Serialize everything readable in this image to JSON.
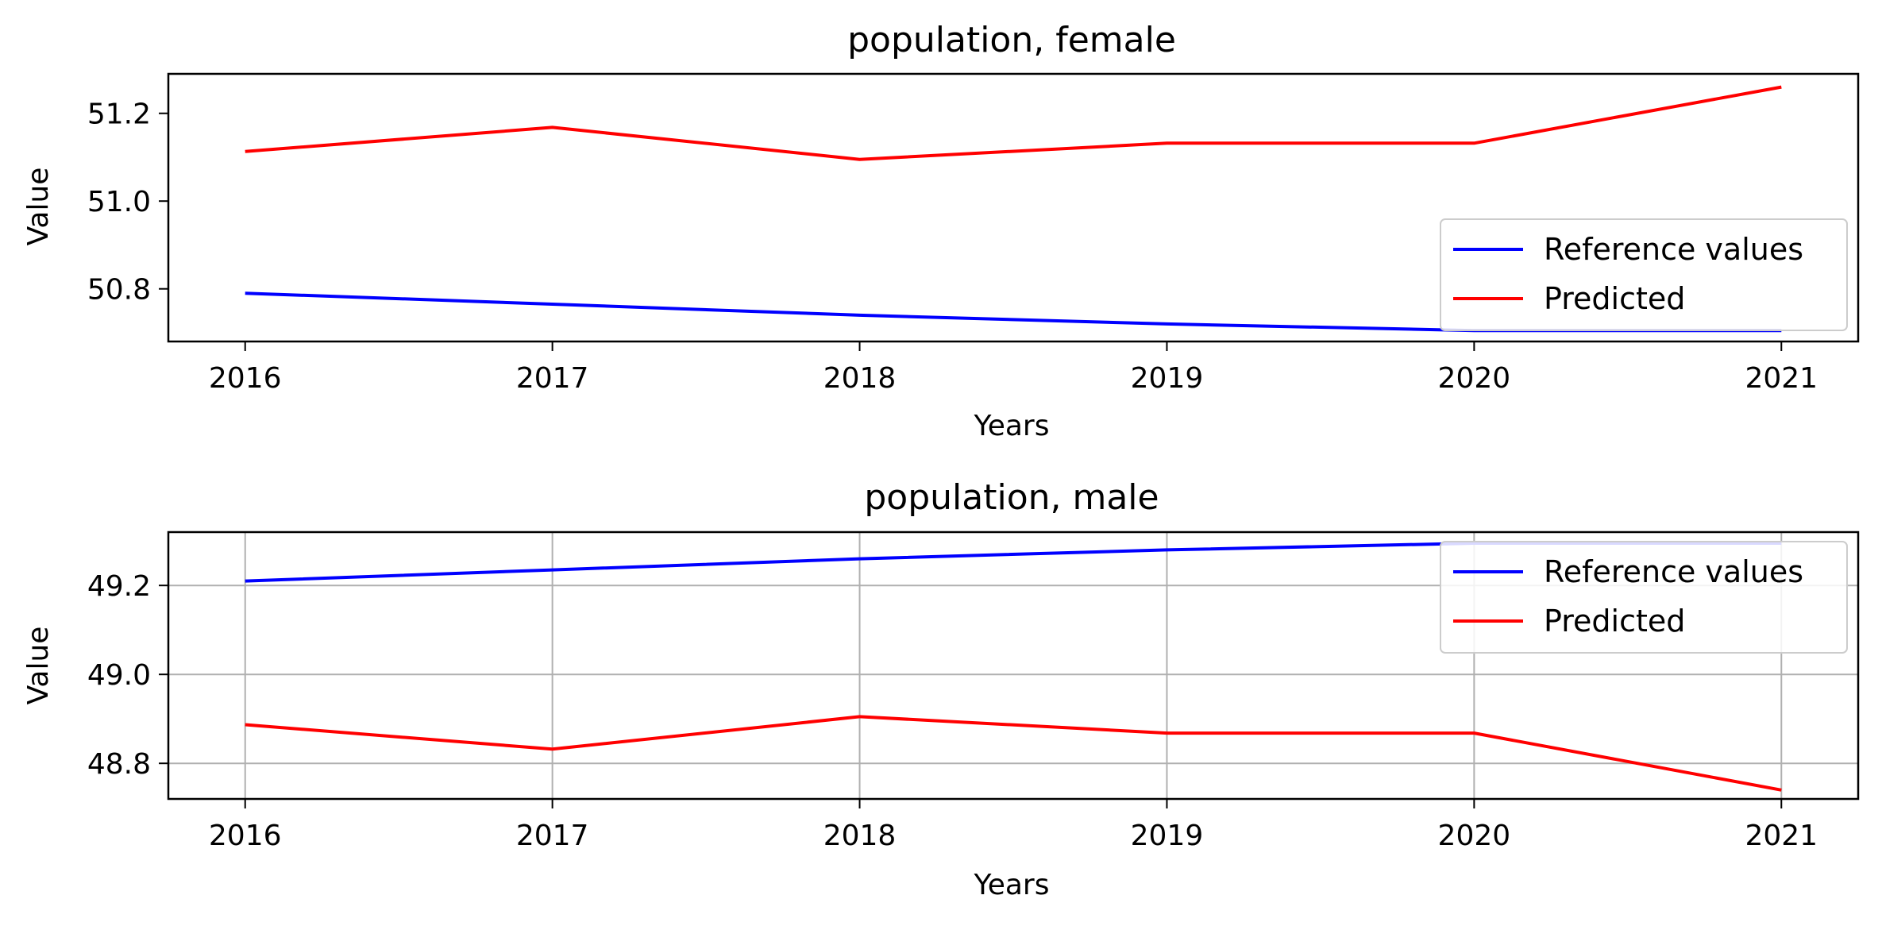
{
  "chart_data": [
    {
      "type": "line",
      "title": "population, female",
      "xlabel": "Years",
      "ylabel": "Value",
      "x": [
        2016,
        2017,
        2018,
        2019,
        2020,
        2021
      ],
      "x_ticks": [
        "2016",
        "2017",
        "2018",
        "2019",
        "2020",
        "2021"
      ],
      "y_ticks": [
        "50.8",
        "51.0",
        "51.2"
      ],
      "y_tick_values": [
        50.8,
        51.0,
        51.2
      ],
      "xlim": [
        2015.75,
        2021.25
      ],
      "ylim": [
        50.68,
        51.29
      ],
      "grid": false,
      "legend_position": "lower-right",
      "series": [
        {
          "name": "Reference values",
          "color": "#0000ff",
          "values": [
            50.79,
            50.765,
            50.74,
            50.72,
            50.705,
            50.705
          ]
        },
        {
          "name": "Predicted",
          "color": "#ff0000",
          "values": [
            51.113,
            51.168,
            51.095,
            51.132,
            51.132,
            51.26
          ]
        }
      ]
    },
    {
      "type": "line",
      "title": "population, male",
      "xlabel": "Years",
      "ylabel": "Value",
      "x": [
        2016,
        2017,
        2018,
        2019,
        2020,
        2021
      ],
      "x_ticks": [
        "2016",
        "2017",
        "2018",
        "2019",
        "2020",
        "2021"
      ],
      "y_ticks": [
        "48.8",
        "49.0",
        "49.2"
      ],
      "y_tick_values": [
        48.8,
        49.0,
        49.2
      ],
      "xlim": [
        2015.75,
        2021.25
      ],
      "ylim": [
        48.72,
        49.32
      ],
      "grid": true,
      "legend_position": "upper-right",
      "series": [
        {
          "name": "Reference values",
          "color": "#0000ff",
          "values": [
            49.21,
            49.235,
            49.26,
            49.28,
            49.295,
            49.295
          ]
        },
        {
          "name": "Predicted",
          "color": "#ff0000",
          "values": [
            48.887,
            48.832,
            48.905,
            48.868,
            48.868,
            48.74
          ]
        }
      ]
    }
  ]
}
